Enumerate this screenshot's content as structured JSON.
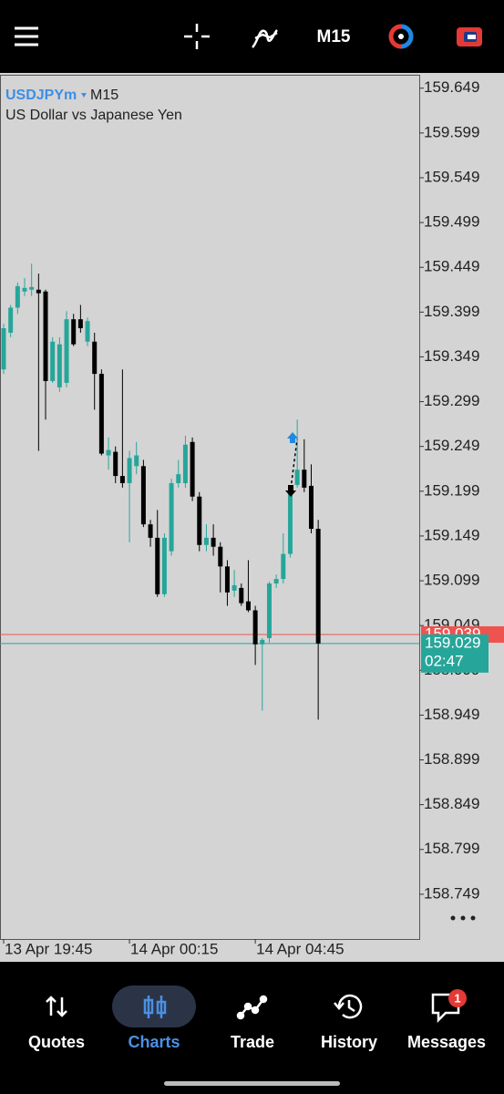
{
  "toolbar": {
    "timeframe": "M15"
  },
  "chart_data": {
    "type": "candlestick",
    "symbol": "USDJPYm",
    "timeframe": "M15",
    "subtitle": "US Dollar vs Japanese Yen",
    "categories": [
      "13 Apr 19:45",
      null,
      null,
      null,
      null,
      null,
      null,
      null,
      null,
      null,
      null,
      null,
      null,
      null,
      null,
      null,
      null,
      null,
      "14 Apr 00:15",
      null,
      null,
      null,
      null,
      null,
      null,
      null,
      null,
      null,
      null,
      null,
      null,
      null,
      null,
      null,
      null,
      null,
      "14 Apr 04:45",
      null,
      null,
      null,
      null,
      null,
      null,
      null,
      null,
      null
    ],
    "open": [
      159.335,
      159.376,
      159.404,
      159.422,
      159.424,
      159.424,
      159.422,
      159.322,
      159.315,
      159.32,
      159.391,
      159.391,
      159.366,
      159.366,
      159.33,
      159.239,
      159.243,
      159.216,
      159.208,
      159.227,
      159.227,
      159.162,
      159.147,
      159.084,
      159.132,
      159.208,
      159.208,
      159.254,
      159.193,
      159.139,
      159.147,
      159.137,
      159.115,
      159.088,
      159.091,
      159.076,
      159.066,
      159.028,
      159.035,
      159.096,
      159.101,
      159.129,
      159.206,
      159.223,
      159.205,
      159.157
    ],
    "high": [
      159.386,
      159.407,
      159.432,
      159.437,
      159.453,
      159.442,
      159.424,
      159.371,
      159.371,
      159.4,
      159.397,
      159.407,
      159.393,
      159.376,
      159.335,
      159.259,
      159.249,
      159.335,
      159.244,
      159.254,
      159.234,
      159.167,
      159.178,
      159.152,
      159.213,
      159.234,
      159.261,
      159.259,
      159.198,
      159.162,
      159.162,
      159.142,
      159.122,
      159.111,
      159.096,
      159.122,
      159.071,
      159.035,
      159.098,
      159.106,
      159.152,
      159.203,
      159.279,
      159.257,
      159.229,
      159.167
    ],
    "low": [
      159.33,
      159.371,
      159.397,
      159.417,
      159.417,
      159.244,
      159.279,
      159.32,
      159.31,
      159.315,
      159.361,
      159.376,
      159.361,
      159.29,
      159.239,
      159.223,
      159.208,
      159.203,
      159.142,
      159.218,
      159.159,
      159.137,
      159.081,
      159.081,
      159.127,
      159.203,
      159.203,
      159.188,
      159.132,
      159.132,
      159.127,
      159.086,
      159.071,
      159.081,
      159.071,
      159.064,
      159.005,
      158.954,
      159.03,
      159.091,
      159.096,
      159.125,
      159.203,
      159.198,
      159.152,
      158.944
    ],
    "close": [
      159.381,
      159.404,
      159.428,
      159.426,
      159.427,
      159.42,
      159.322,
      159.366,
      159.363,
      159.391,
      159.363,
      159.381,
      159.389,
      159.33,
      159.241,
      159.245,
      159.216,
      159.208,
      159.236,
      159.239,
      159.162,
      159.147,
      159.084,
      159.147,
      159.208,
      159.218,
      159.251,
      159.193,
      159.139,
      159.147,
      159.137,
      159.115,
      159.086,
      159.094,
      159.074,
      159.066,
      159.028,
      159.033,
      159.096,
      159.101,
      159.129,
      159.198,
      159.223,
      159.203,
      159.157,
      159.029
    ],
    "up_color": "#26a69a",
    "down_color": "#000000",
    "ylim": [
      158.699,
      159.664
    ],
    "yticks": [
      159.649,
      159.599,
      159.549,
      159.499,
      159.449,
      159.399,
      159.349,
      159.299,
      159.249,
      159.199,
      159.149,
      159.099,
      159.049,
      158.999,
      158.949,
      158.899,
      158.849,
      158.799,
      158.749
    ],
    "ask": 159.039,
    "ask_color": "#ef5350",
    "bid": 159.029,
    "bid_color": "#26a69a",
    "countdown": "02:47"
  },
  "nav": {
    "items": [
      {
        "label": "Quotes"
      },
      {
        "label": "Charts"
      },
      {
        "label": "Trade"
      },
      {
        "label": "History"
      },
      {
        "label": "Messages"
      }
    ],
    "active": 1,
    "messages_badge": "1"
  }
}
